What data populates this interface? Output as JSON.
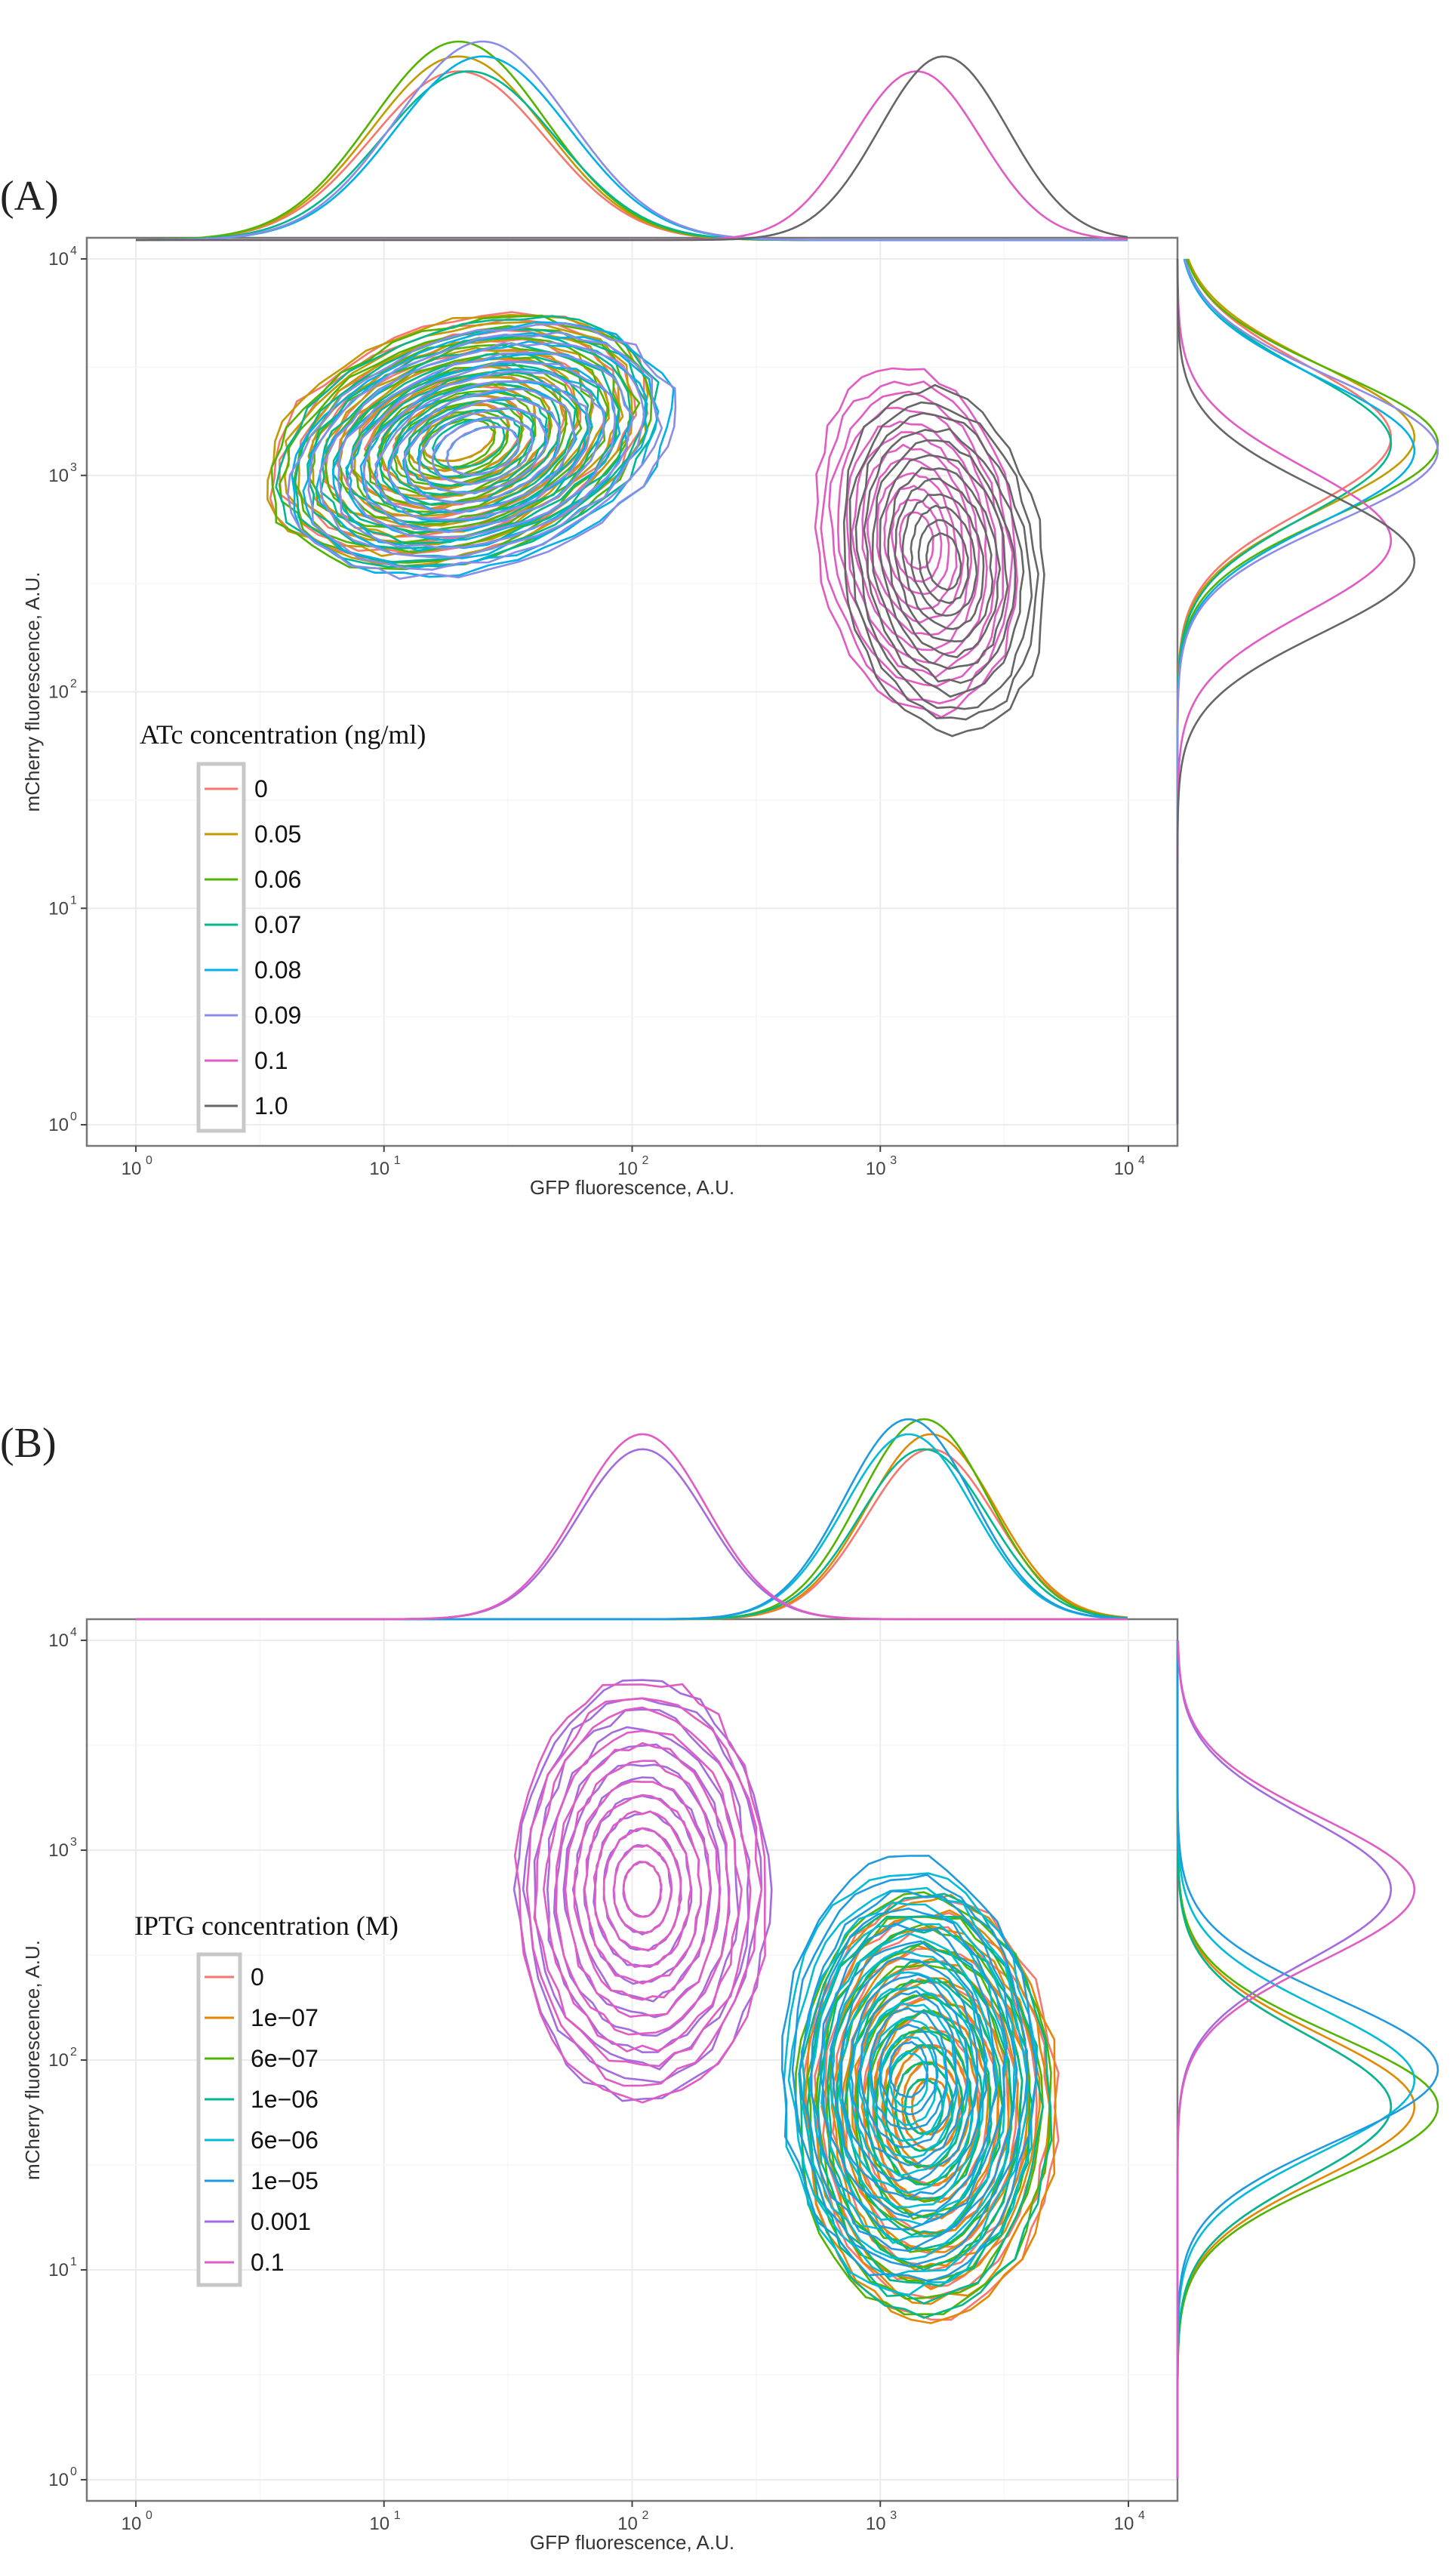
{
  "chart_data": [
    {
      "panel_label": "(A)",
      "type": "density-contour",
      "xlabel": "GFP fluorescence, A.U.",
      "ylabel": "mCherry fluorescence, A.U.",
      "x_scale": "log10",
      "y_scale": "log10",
      "xlim": [
        1,
        10000
      ],
      "ylim": [
        1,
        10000
      ],
      "x_ticks": [
        {
          "e": "0",
          "v": 1
        },
        {
          "e": "1",
          "v": 10
        },
        {
          "e": "2",
          "v": 100
        },
        {
          "e": "3",
          "v": 1000
        },
        {
          "e": "4",
          "v": 10000
        }
      ],
      "y_ticks": [
        {
          "e": "0",
          "v": 1
        },
        {
          "e": "1",
          "v": 10
        },
        {
          "e": "2",
          "v": 100
        },
        {
          "e": "3",
          "v": 1000
        },
        {
          "e": "4",
          "v": 10000
        }
      ],
      "tick_base": "10",
      "grid": true,
      "marginals": [
        "top",
        "right"
      ],
      "legend": {
        "title": "ATc concentration (ng/ml)",
        "placement": "left",
        "entries": [
          {
            "label": "0",
            "color": "#F8766D"
          },
          {
            "label": "0.05",
            "color": "#C49A00"
          },
          {
            "label": "0.06",
            "color": "#53B400"
          },
          {
            "label": "0.07",
            "color": "#00B890"
          },
          {
            "label": "0.08",
            "color": "#00B0E8"
          },
          {
            "label": "0.09",
            "color": "#8C8CE8"
          },
          {
            "label": "0.1",
            "color": "#E25BC4"
          },
          {
            "label": "1.0",
            "color": "#666666"
          }
        ]
      },
      "series": [
        {
          "label": "0",
          "color": "#F8766D",
          "peak_gfp": 20,
          "peak_mcherry": 1500
        },
        {
          "label": "0.05",
          "color": "#C49A00",
          "peak_gfp": 20,
          "peak_mcherry": 1500
        },
        {
          "label": "0.06",
          "color": "#53B400",
          "peak_gfp": 20,
          "peak_mcherry": 1400
        },
        {
          "label": "0.07",
          "color": "#00B890",
          "peak_gfp": 22,
          "peak_mcherry": 1400
        },
        {
          "label": "0.08",
          "color": "#00B0E8",
          "peak_gfp": 25,
          "peak_mcherry": 1300
        },
        {
          "label": "0.09",
          "color": "#8C8CE8",
          "peak_gfp": 25,
          "peak_mcherry": 1300
        },
        {
          "label": "0.1",
          "color": "#E25BC4",
          "peak_gfp": 1400,
          "peak_mcherry": 500
        },
        {
          "label": "1.0",
          "color": "#666666",
          "peak_gfp": 1800,
          "peak_mcherry": 400
        }
      ]
    },
    {
      "panel_label": "(B)",
      "type": "density-contour",
      "xlabel": "GFP fluorescence, A.U.",
      "ylabel": "mCherry fluorescence, A.U.",
      "x_scale": "log10",
      "y_scale": "log10",
      "xlim": [
        1,
        10000
      ],
      "ylim": [
        1,
        10000
      ],
      "x_ticks": [
        {
          "e": "0",
          "v": 1
        },
        {
          "e": "1",
          "v": 10
        },
        {
          "e": "2",
          "v": 100
        },
        {
          "e": "3",
          "v": 1000
        },
        {
          "e": "4",
          "v": 10000
        }
      ],
      "y_ticks": [
        {
          "e": "0",
          "v": 1
        },
        {
          "e": "1",
          "v": 10
        },
        {
          "e": "2",
          "v": 100
        },
        {
          "e": "3",
          "v": 1000
        },
        {
          "e": "4",
          "v": 10000
        }
      ],
      "tick_base": "10",
      "grid": true,
      "marginals": [
        "top",
        "right"
      ],
      "legend": {
        "title": "IPTG concentration (M)",
        "placement": "left",
        "entries": [
          {
            "label": "0",
            "color": "#F8766D"
          },
          {
            "label": "1e−07",
            "color": "#E58700"
          },
          {
            "label": "6e−07",
            "color": "#53B400"
          },
          {
            "label": "1e−06",
            "color": "#00B890"
          },
          {
            "label": "6e−06",
            "color": "#00BCD8"
          },
          {
            "label": "1e−05",
            "color": "#1F9AE0"
          },
          {
            "label": "0.001",
            "color": "#A36BE0"
          },
          {
            "label": "0.1",
            "color": "#E25BC4"
          }
        ]
      },
      "series": [
        {
          "label": "0",
          "color": "#F8766D",
          "peak_gfp": 1600,
          "peak_mcherry": 60
        },
        {
          "label": "1e−07",
          "color": "#E58700",
          "peak_gfp": 1600,
          "peak_mcherry": 60
        },
        {
          "label": "6e−07",
          "color": "#53B400",
          "peak_gfp": 1500,
          "peak_mcherry": 60
        },
        {
          "label": "1e−06",
          "color": "#00B890",
          "peak_gfp": 1500,
          "peak_mcherry": 60
        },
        {
          "label": "6e−06",
          "color": "#00BCD8",
          "peak_gfp": 1300,
          "peak_mcherry": 80
        },
        {
          "label": "1e−05",
          "color": "#1F9AE0",
          "peak_gfp": 1300,
          "peak_mcherry": 90
        },
        {
          "label": "0.001",
          "color": "#A36BE0",
          "peak_gfp": 110,
          "peak_mcherry": 650
        },
        {
          "label": "0.1",
          "color": "#E25BC4",
          "peak_gfp": 110,
          "peak_mcherry": 650
        }
      ]
    }
  ]
}
